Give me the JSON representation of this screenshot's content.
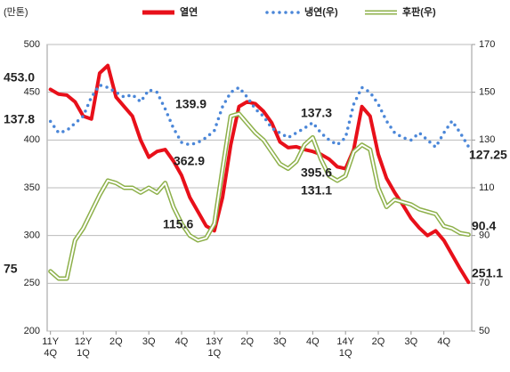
{
  "chart_data": {
    "type": "line",
    "y_label": "(만톤)",
    "legend": "top",
    "grid": true,
    "x": [
      0,
      0.25,
      0.5,
      0.75,
      1,
      1.25,
      1.5,
      1.75,
      2,
      2.25,
      2.5,
      2.75,
      3,
      3.25,
      3.5,
      3.75,
      4,
      4.25,
      4.5,
      4.75,
      5,
      5.25,
      5.5,
      5.75,
      6,
      6.25,
      6.5,
      6.75,
      7,
      7.25,
      7.5,
      7.75,
      8,
      8.25,
      8.5,
      8.75,
      9,
      9.25,
      9.5,
      9.75,
      10,
      10.25,
      10.5,
      10.75,
      11,
      11.25,
      11.5,
      11.75,
      12,
      12.25,
      12.5,
      12.75
    ],
    "xlim": [
      -0.1,
      12.85
    ],
    "xticks": [
      {
        "value": 0,
        "label": "11Y 4Q"
      },
      {
        "value": 1,
        "label": "12Y 1Q"
      },
      {
        "value": 2,
        "label": "2Q"
      },
      {
        "value": 3,
        "label": "3Q"
      },
      {
        "value": 4,
        "label": "4Q"
      },
      {
        "value": 5,
        "label": "13Y 1Q"
      },
      {
        "value": 6,
        "label": "2Q"
      },
      {
        "value": 7,
        "label": "3Q"
      },
      {
        "value": 8,
        "label": "4Q"
      },
      {
        "value": 9,
        "label": "14Y 1Q"
      },
      {
        "value": 10,
        "label": "2Q"
      },
      {
        "value": 11,
        "label": "3Q"
      },
      {
        "value": 12,
        "label": "4Q"
      }
    ],
    "ylim": [
      200,
      500
    ],
    "yticks": [
      200,
      250,
      300,
      350,
      400,
      450,
      500
    ],
    "y2lim": [
      50,
      170
    ],
    "y2ticks": [
      50,
      70,
      90,
      110,
      130,
      150,
      170
    ],
    "series": [
      {
        "name": "열연",
        "color": "#e8101a",
        "style": "solid",
        "values": [
          453,
          448,
          447,
          440,
          425,
          422,
          470,
          478,
          445,
          435,
          425,
          400,
          382,
          388,
          390,
          378,
          362.9,
          340,
          325,
          310,
          305,
          340,
          395,
          435,
          440,
          438,
          430,
          418,
          398,
          392,
          393,
          390,
          388,
          385,
          380,
          372,
          370,
          390,
          435,
          425,
          385,
          360,
          345,
          332,
          318,
          308,
          300,
          305,
          295,
          280,
          265,
          251.1
        ]
      },
      {
        "name": "냉연(우)",
        "color": "#4a86d8",
        "style": "dotted",
        "axis": "y2",
        "values": [
          137.8,
          133,
          134,
          137,
          140,
          148,
          153,
          152,
          150,
          148,
          149,
          146,
          151,
          150,
          143,
          135,
          129,
          128,
          129,
          131,
          134,
          144,
          150,
          152,
          148,
          143,
          139.9,
          135,
          133,
          131,
          133,
          135,
          137.3,
          133,
          130,
          128,
          131,
          145,
          152,
          150,
          145,
          138,
          133,
          131,
          130,
          133,
          130,
          127,
          133,
          138,
          133,
          127.25
        ]
      },
      {
        "name": "후판(우)",
        "color": "#8db04a",
        "style": "double",
        "axis": "y2",
        "values": [
          75,
          72,
          72,
          88,
          93,
          100,
          107,
          113,
          112,
          110,
          110,
          108,
          110,
          108,
          112,
          102,
          95,
          90,
          88,
          89,
          95,
          118,
          140,
          141,
          137,
          133,
          130,
          125,
          120,
          118,
          121,
          128,
          131.1,
          122,
          115,
          113,
          115,
          125,
          128,
          126,
          110,
          102,
          105,
          104,
          103,
          101,
          100,
          99,
          94,
          93,
          91,
          90.4
        ]
      }
    ],
    "annotations": [
      "453.0",
      "137.8",
      "75",
      "139.9",
      "362.9",
      "115.6",
      "137.3",
      "395.6",
      "131.1",
      "127.25",
      "90.4",
      "251.1"
    ]
  }
}
